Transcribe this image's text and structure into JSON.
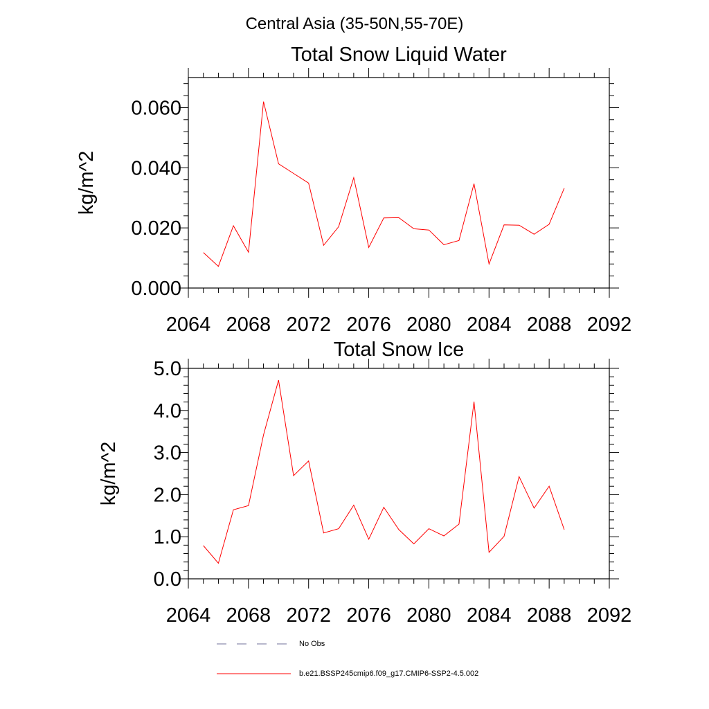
{
  "figure": {
    "suptitle": "Central Asia (35-50N,55-70E)"
  },
  "legend": {
    "entries": [
      {
        "label": "No Obs",
        "color": "#6f6f9a",
        "dash": "dashed"
      },
      {
        "label": "b.e21.BSSP245cmip6.f09_g17.CMIP6-SSP2-4.5.002",
        "color": "#ff0000",
        "dash": "solid"
      }
    ],
    "placement": "bottom-center"
  },
  "chart_data": [
    {
      "type": "line",
      "title": "Total Snow Liquid Water",
      "ylabel": "kg/m^2",
      "xlabel": "",
      "xlim": [
        2064,
        2092
      ],
      "ylim": [
        0,
        0.07
      ],
      "xticks": [
        2064,
        2068,
        2072,
        2076,
        2080,
        2084,
        2088,
        2092
      ],
      "yticks": [
        0,
        0.02,
        0.04,
        0.06
      ],
      "ytick_labels": [
        "0.000",
        "0.020",
        "0.040",
        "0.060"
      ],
      "grid": false,
      "series": [
        {
          "name": "b.e21.BSSP245cmip6.f09_g17.CMIP6-SSP2-4.5.002",
          "color": "#ff0000",
          "x": [
            2065,
            2066,
            2067,
            2068,
            2069,
            2070,
            2071,
            2072,
            2073,
            2074,
            2075,
            2076,
            2077,
            2078,
            2079,
            2080,
            2081,
            2082,
            2083,
            2084,
            2085,
            2086,
            2087,
            2088,
            2089
          ],
          "y": [
            0.0118,
            0.0072,
            0.0207,
            0.0119,
            0.062,
            0.0413,
            0.0381,
            0.0349,
            0.0142,
            0.0204,
            0.0367,
            0.0135,
            0.0233,
            0.0234,
            0.0197,
            0.0193,
            0.0144,
            0.0158,
            0.0347,
            0.008,
            0.021,
            0.0209,
            0.0179,
            0.0212,
            0.0332
          ]
        }
      ]
    },
    {
      "type": "line",
      "title": "Total Snow Ice",
      "ylabel": "kg/m^2",
      "xlabel": "",
      "xlim": [
        2064,
        2092
      ],
      "ylim": [
        0,
        5
      ],
      "xticks": [
        2064,
        2068,
        2072,
        2076,
        2080,
        2084,
        2088,
        2092
      ],
      "yticks": [
        0,
        1,
        2,
        3,
        4,
        5
      ],
      "ytick_labels": [
        "0.0",
        "1.0",
        "2.0",
        "3.0",
        "4.0",
        "5.0"
      ],
      "grid": false,
      "series": [
        {
          "name": "b.e21.BSSP245cmip6.f09_g17.CMIP6-SSP2-4.5.002",
          "color": "#ff0000",
          "x": [
            2065,
            2066,
            2067,
            2068,
            2069,
            2070,
            2071,
            2072,
            2073,
            2074,
            2075,
            2076,
            2077,
            2078,
            2079,
            2080,
            2081,
            2082,
            2083,
            2084,
            2085,
            2086,
            2087,
            2088,
            2089
          ],
          "y": [
            0.79,
            0.37,
            1.64,
            1.74,
            3.42,
            4.72,
            2.45,
            2.8,
            1.09,
            1.19,
            1.75,
            0.94,
            1.7,
            1.17,
            0.83,
            1.19,
            1.02,
            1.3,
            4.21,
            0.63,
            1.01,
            2.43,
            1.68,
            2.2,
            1.17
          ]
        }
      ]
    }
  ]
}
